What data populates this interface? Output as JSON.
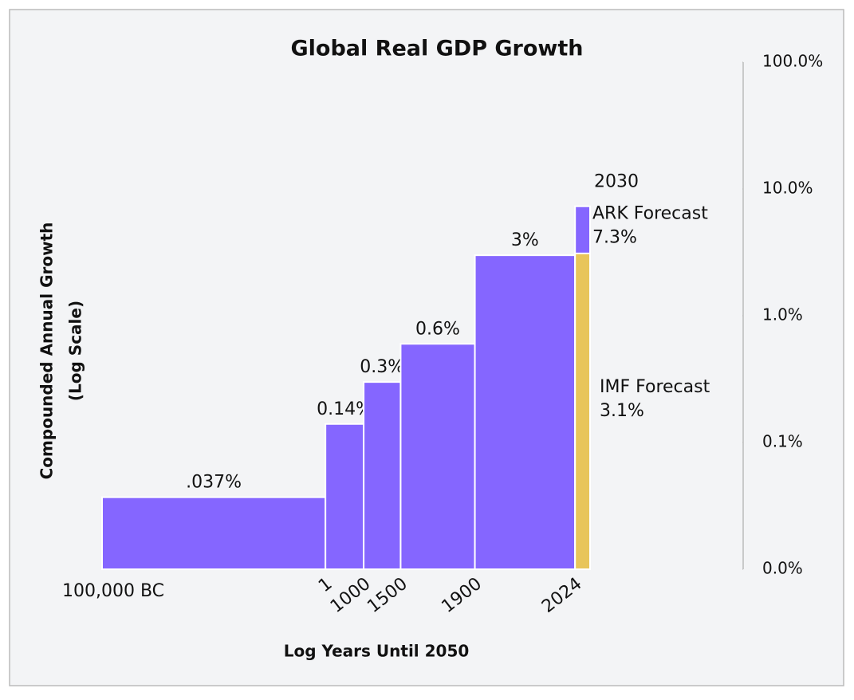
{
  "chart_data": {
    "type": "histogram",
    "title": "Global Real GDP Growth",
    "y_label": [
      "Compounded Annual Growth",
      "(Log Scale)"
    ],
    "x_label": "Log Years Until 2050",
    "bins": [
      102050,
      2049,
      1050,
      550,
      150,
      26
    ],
    "values": [
      0.037,
      0.14,
      0.3,
      0.6,
      3
    ],
    "value_labels": [
      ".037%",
      "0.14%",
      "0.3%",
      "0.6%",
      "3%"
    ],
    "color": "#8566ff",
    "forecast_label": "2030",
    "forecast_bins": [
      26,
      20
    ],
    "forecasts": [
      {
        "name": "ARK Forecast",
        "value": 7.3,
        "value_label": "7.3%",
        "color": "#8566ff"
      },
      {
        "name": "IMF Forecast",
        "value": 3.1,
        "value_label": "3.1%",
        "color": "#e8c55a"
      }
    ],
    "xlog": true,
    "ylog": true,
    "xlim": [
      102050,
      20
    ],
    "ylim": [
      0.01,
      100
    ],
    "xticks": [
      {
        "value": 102050,
        "label": "100,000 BC"
      },
      {
        "value": 2049,
        "label": "1"
      },
      {
        "value": 1050,
        "label": "1000"
      },
      {
        "value": 550,
        "label": "1500"
      },
      {
        "value": 150,
        "label": "1900"
      },
      {
        "value": 26,
        "label": "2024"
      }
    ],
    "yticks": [
      {
        "value": 0.01,
        "label": "0.0%"
      },
      {
        "value": 0.1,
        "label": "0.1%"
      },
      {
        "value": 1,
        "label": "1.0%"
      },
      {
        "value": 10,
        "label": "10.0%"
      },
      {
        "value": 100,
        "label": "100.0%"
      }
    ],
    "y_axis_side": "right"
  }
}
